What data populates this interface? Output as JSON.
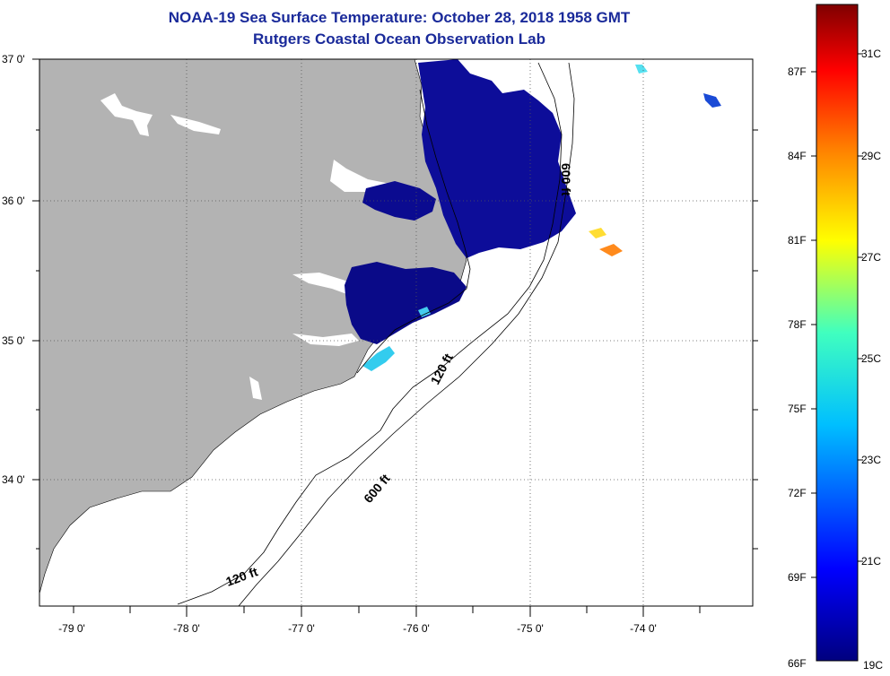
{
  "title": {
    "line1": "NOAA-19 Sea Surface Temperature:  October 28, 2018 1958 GMT",
    "line2": "Rutgers Coastal Ocean Observation Lab"
  },
  "map": {
    "lat_labels": [
      "37 0'",
      "36 0'",
      "35 0'",
      "34 0'"
    ],
    "lon_labels": [
      "-79 0'",
      "-78 0'",
      "-77 0'",
      "-76 0'",
      "-75 0'",
      "-74 0'"
    ],
    "contour_labels": [
      "600 ft",
      "120 ft",
      "600 ft",
      "120 ft"
    ],
    "colors": {
      "land": "#b3b3b3",
      "ocean": "#ffffff",
      "deep_blue": "#0a0a8c",
      "navy": "#08087a",
      "cyan": "#33ccee"
    }
  },
  "colorbar": {
    "fahrenheit_labels": [
      "87F",
      "84F",
      "81F",
      "78F",
      "75F",
      "72F",
      "69F",
      "66F"
    ],
    "celsius_labels": [
      "31C",
      "29C",
      "27C",
      "25C",
      "23C",
      "21C",
      "19C"
    ],
    "gradient": [
      "#00007f",
      "#0000ff",
      "#00bfff",
      "#40ffbf",
      "#ffff00",
      "#ff8000",
      "#ff0000",
      "#7f0000"
    ]
  }
}
